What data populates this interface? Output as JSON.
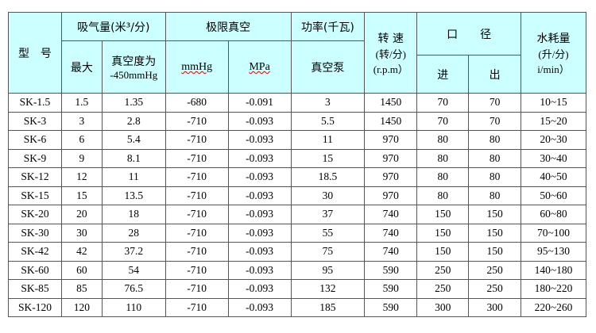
{
  "header": {
    "model": "型　号",
    "flow": "吸气量(米³/分)",
    "flow_max": "最大",
    "flow_450a": "真空度为",
    "flow_450b": "-450mmHg",
    "vacuum": "极限真空",
    "mmhg": "mmHg",
    "mpa": "MPa",
    "power": "功率(千瓦)",
    "pump": "真空泵",
    "speed1": "转 速",
    "speed2": "(转/分)",
    "speed3": "(r.p.m）",
    "port": "口　　径",
    "inlet": "进",
    "outlet": "出",
    "water1": "水耗量",
    "water2": "(升/分)",
    "water3": "i/min）"
  },
  "rows": [
    [
      "SK-1.5",
      "1.5",
      "1.35",
      "-680",
      "-0.091",
      "3",
      "1450",
      "70",
      "70",
      "10~15"
    ],
    [
      "SK-3",
      "3",
      "2.8",
      "-710",
      "-0.093",
      "5.5",
      "1450",
      "70",
      "70",
      "15~20"
    ],
    [
      "SK-6",
      "6",
      "5.4",
      "-710",
      "-0.093",
      "11",
      "970",
      "80",
      "80",
      "20~30"
    ],
    [
      "SK-9",
      "9",
      "8.1",
      "-710",
      "-0.093",
      "15",
      "970",
      "80",
      "80",
      "30~40"
    ],
    [
      "SK-12",
      "12",
      "11",
      "-710",
      "-0.093",
      "18.5",
      "970",
      "80",
      "80",
      "40~50"
    ],
    [
      "SK-15",
      "15",
      "13.5",
      "-710",
      "-0.093",
      "30",
      "970",
      "80",
      "80",
      "50~60"
    ],
    [
      "SK-20",
      "20",
      "18",
      "-710",
      "-0.093",
      "37",
      "740",
      "150",
      "150",
      "60~80"
    ],
    [
      "SK-30",
      "30",
      "28",
      "-710",
      "-0.093",
      "55",
      "740",
      "150",
      "150",
      "70~100"
    ],
    [
      "SK-42",
      "42",
      "37.2",
      "-710",
      "-0.093",
      "75",
      "740",
      "150",
      "150",
      "95~130"
    ],
    [
      "SK-60",
      "60",
      "54",
      "-710",
      "-0.093",
      "95",
      "590",
      "250",
      "250",
      "140~180"
    ],
    [
      "SK-85",
      "85",
      "76.5",
      "-710",
      "-0.093",
      "132",
      "590",
      "250",
      "250",
      "180~220"
    ],
    [
      "SK-120",
      "120",
      "110",
      "-710",
      "-0.093",
      "185",
      "590",
      "300",
      "300",
      "220~260"
    ]
  ]
}
